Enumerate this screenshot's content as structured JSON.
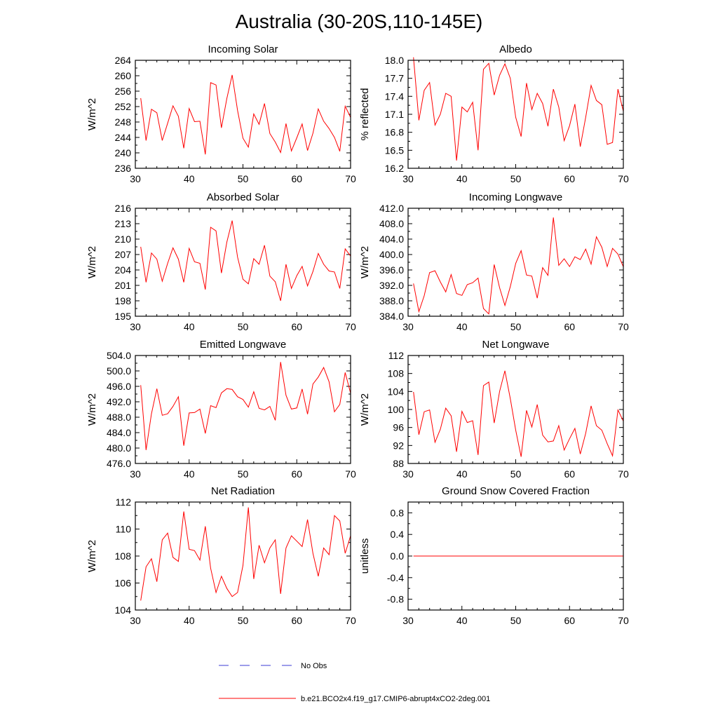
{
  "title": "Australia (30-20S,110-145E)",
  "chart_data": [
    {
      "type": "line",
      "title": "Incoming Solar",
      "ylabel": "W/m^2",
      "xlim": [
        30,
        70
      ],
      "ylim": [
        236,
        264
      ],
      "xticks": [
        "30",
        "40",
        "50",
        "60",
        "70"
      ],
      "yticks": [
        "236",
        "240",
        "244",
        "248",
        "252",
        "256",
        "260",
        "264"
      ],
      "series": [
        {
          "name": "b.e21.BCO2x4.f19_g17.CMIP6-abrupt4xCO2-2deg.001",
          "x": [
            31,
            32,
            33,
            34,
            35,
            36,
            37,
            38,
            39,
            40,
            41,
            42,
            43,
            44,
            45,
            46,
            47,
            48,
            49,
            50,
            51,
            52,
            53,
            54,
            55,
            56,
            57,
            58,
            59,
            60,
            61,
            62,
            63,
            64,
            65,
            66,
            67,
            68,
            69,
            70
          ],
          "values": [
            254.2,
            243.2,
            251.3,
            250.4,
            243.2,
            247.7,
            252.2,
            249.5,
            241.2,
            251.5,
            248.1,
            248.2,
            239.6,
            258.2,
            257.6,
            246.5,
            254.1,
            260.2,
            251.0,
            243.8,
            241.5,
            250.1,
            247.4,
            252.8,
            245.0,
            242.8,
            240.1,
            247.6,
            240.5,
            243.9,
            247.5,
            240.6,
            245.1,
            251.4,
            248.2,
            246.3,
            244.0,
            240.4,
            252.1,
            249.2
          ]
        }
      ]
    },
    {
      "type": "line",
      "title": "Albedo",
      "ylabel": "% reflected",
      "xlim": [
        30,
        70
      ],
      "ylim": [
        16.2,
        18.0
      ],
      "xticks": [
        "30",
        "40",
        "50",
        "60",
        "70"
      ],
      "yticks": [
        "16.2",
        "16.5",
        "16.8",
        "17.1",
        "17.4",
        "17.7",
        "18.0"
      ],
      "series": [
        {
          "name": "b.e21.BCO2x4.f19_g17.CMIP6-abrupt4xCO2-2deg.001",
          "x": [
            31,
            32,
            33,
            34,
            35,
            36,
            37,
            38,
            39,
            40,
            41,
            42,
            43,
            44,
            45,
            46,
            47,
            48,
            49,
            50,
            51,
            52,
            53,
            54,
            55,
            56,
            57,
            58,
            59,
            60,
            61,
            62,
            63,
            64,
            65,
            66,
            67,
            68,
            69,
            70
          ],
          "values": [
            18.05,
            17.0,
            17.5,
            17.63,
            16.92,
            17.1,
            17.45,
            17.4,
            16.33,
            17.22,
            17.14,
            17.3,
            16.5,
            17.85,
            17.95,
            17.42,
            17.75,
            17.94,
            17.7,
            17.05,
            16.73,
            17.62,
            17.18,
            17.45,
            17.28,
            16.9,
            17.52,
            17.22,
            16.66,
            16.91,
            17.27,
            16.56,
            17.05,
            17.58,
            17.33,
            17.26,
            16.6,
            16.63,
            17.52,
            17.15
          ]
        }
      ]
    },
    {
      "type": "line",
      "title": "Absorbed Solar",
      "ylabel": "W/m^2",
      "xlim": [
        30,
        70
      ],
      "ylim": [
        195,
        216
      ],
      "xticks": [
        "30",
        "40",
        "50",
        "60",
        "70"
      ],
      "yticks": [
        "195",
        "198",
        "201",
        "204",
        "207",
        "210",
        "213",
        "216"
      ],
      "series": [
        {
          "name": "b.e21.BCO2x4.f19_g17.CMIP6-abrupt4xCO2-2deg.001",
          "x": [
            31,
            32,
            33,
            34,
            35,
            36,
            37,
            38,
            39,
            40,
            41,
            42,
            43,
            44,
            45,
            46,
            47,
            48,
            49,
            50,
            51,
            52,
            53,
            54,
            55,
            56,
            57,
            58,
            59,
            60,
            61,
            62,
            63,
            64,
            65,
            66,
            67,
            68,
            69,
            70
          ],
          "values": [
            208.5,
            201.6,
            207.3,
            206.1,
            201.8,
            205.3,
            208.3,
            206.1,
            201.6,
            208.2,
            205.6,
            205.3,
            200.2,
            212.3,
            211.6,
            203.4,
            209.4,
            213.6,
            206.5,
            202.2,
            201.3,
            206.2,
            205.1,
            208.8,
            202.8,
            201.7,
            198.0,
            205.1,
            200.4,
            202.9,
            204.7,
            200.9,
            203.7,
            207.2,
            205.1,
            203.8,
            203.6,
            200.4,
            208.1,
            206.7
          ]
        }
      ]
    },
    {
      "type": "line",
      "title": "Incoming Longwave",
      "ylabel": "W/m^2",
      "xlim": [
        30,
        70
      ],
      "ylim": [
        384,
        412
      ],
      "xticks": [
        "30",
        "40",
        "50",
        "60",
        "70"
      ],
      "yticks": [
        "384.0",
        "388.0",
        "392.0",
        "396.0",
        "400.0",
        "404.0",
        "408.0",
        "412.0"
      ],
      "series": [
        {
          "name": "b.e21.BCO2x4.f19_g17.CMIP6-abrupt4xCO2-2deg.001",
          "x": [
            31,
            32,
            33,
            34,
            35,
            36,
            37,
            38,
            39,
            40,
            41,
            42,
            43,
            44,
            45,
            46,
            47,
            48,
            49,
            50,
            51,
            52,
            53,
            54,
            55,
            56,
            57,
            58,
            59,
            60,
            61,
            62,
            63,
            64,
            65,
            66,
            67,
            68,
            69,
            70
          ],
          "values": [
            392.5,
            385.2,
            389.3,
            395.3,
            395.8,
            392.9,
            390.3,
            394.8,
            389.9,
            389.4,
            392.2,
            392.7,
            393.9,
            386.0,
            384.6,
            397.4,
            391.4,
            386.8,
            391.7,
            397.7,
            401.0,
            394.7,
            394.4,
            388.7,
            396.6,
            394.6,
            409.6,
            397.2,
            398.9,
            396.9,
            399.4,
            398.7,
            401.4,
            397.5,
            404.6,
            401.9,
            396.9,
            401.6,
            400.1,
            396.8
          ]
        }
      ]
    },
    {
      "type": "line",
      "title": "Emitted Longwave",
      "ylabel": "W/m^2",
      "xlim": [
        30,
        70
      ],
      "ylim": [
        476,
        504
      ],
      "xticks": [
        "30",
        "40",
        "50",
        "60",
        "70"
      ],
      "yticks": [
        "476.0",
        "480.0",
        "484.0",
        "488.0",
        "492.0",
        "496.0",
        "500.0",
        "504.0"
      ],
      "series": [
        {
          "name": "b.e21.BCO2x4.f19_g17.CMIP6-abrupt4xCO2-2deg.001",
          "x": [
            31,
            32,
            33,
            34,
            35,
            36,
            37,
            38,
            39,
            40,
            41,
            42,
            43,
            44,
            45,
            46,
            47,
            48,
            49,
            50,
            51,
            52,
            53,
            54,
            55,
            56,
            57,
            58,
            59,
            60,
            61,
            62,
            63,
            64,
            65,
            66,
            67,
            68,
            69,
            70
          ],
          "values": [
            496.3,
            479.5,
            488.9,
            495.4,
            488.5,
            488.9,
            490.8,
            493.3,
            480.6,
            489.1,
            489.2,
            490.1,
            483.8,
            491.0,
            490.5,
            494.3,
            495.4,
            495.2,
            493.3,
            492.6,
            490.6,
            494.6,
            490.3,
            489.9,
            490.8,
            487.2,
            502.3,
            493.7,
            490.1,
            490.4,
            495.3,
            488.8,
            496.6,
            498.4,
            500.9,
            497.2,
            489.4,
            491.3,
            499.6,
            494.2
          ]
        }
      ]
    },
    {
      "type": "line",
      "title": "Net Longwave",
      "ylabel": "W/m^2",
      "xlim": [
        30,
        70
      ],
      "ylim": [
        88,
        112
      ],
      "xticks": [
        "30",
        "40",
        "50",
        "60",
        "70"
      ],
      "yticks": [
        "88",
        "92",
        "96",
        "100",
        "104",
        "108",
        "112"
      ],
      "series": [
        {
          "name": "b.e21.BCO2x4.f19_g17.CMIP6-abrupt4xCO2-2deg.001",
          "x": [
            31,
            32,
            33,
            34,
            35,
            36,
            37,
            38,
            39,
            40,
            41,
            42,
            43,
            44,
            45,
            46,
            47,
            48,
            49,
            50,
            51,
            52,
            53,
            54,
            55,
            56,
            57,
            58,
            59,
            60,
            61,
            62,
            63,
            64,
            65,
            66,
            67,
            68,
            69,
            70
          ],
          "values": [
            103.9,
            94.4,
            99.5,
            99.9,
            92.7,
            95.6,
            100.3,
            98.6,
            90.6,
            99.6,
            97.1,
            97.5,
            89.9,
            105.3,
            106.1,
            97.0,
            104.0,
            108.6,
            102.4,
            95.4,
            89.5,
            99.8,
            96.1,
            101.1,
            94.3,
            92.8,
            93.0,
            96.4,
            91.0,
            93.5,
            95.8,
            90.1,
            94.7,
            100.8,
            96.4,
            95.4,
            92.4,
            89.7,
            99.9,
            97.4
          ]
        }
      ]
    },
    {
      "type": "line",
      "title": "Net Radiation",
      "ylabel": "W/m^2",
      "xlim": [
        30,
        70
      ],
      "ylim": [
        104,
        112
      ],
      "xticks": [
        "30",
        "40",
        "50",
        "60",
        "70"
      ],
      "yticks": [
        "104",
        "106",
        "108",
        "110",
        "112"
      ],
      "series": [
        {
          "name": "b.e21.BCO2x4.f19_g17.CMIP6-abrupt4xCO2-2deg.001",
          "x": [
            31,
            32,
            33,
            34,
            35,
            36,
            37,
            38,
            39,
            40,
            41,
            42,
            43,
            44,
            45,
            46,
            47,
            48,
            49,
            50,
            51,
            52,
            53,
            54,
            55,
            56,
            57,
            58,
            59,
            60,
            61,
            62,
            63,
            64,
            65,
            66,
            67,
            68,
            69,
            70
          ],
          "values": [
            104.7,
            107.2,
            107.8,
            106.1,
            109.2,
            109.7,
            107.9,
            107.6,
            111.3,
            108.5,
            108.4,
            107.7,
            110.2,
            107.1,
            105.3,
            106.5,
            105.6,
            105.0,
            105.3,
            107.3,
            111.6,
            106.3,
            108.8,
            107.5,
            108.6,
            109.2,
            105.2,
            108.6,
            109.5,
            109.1,
            108.7,
            110.7,
            108.2,
            106.5,
            108.6,
            108.1,
            111.0,
            110.6,
            108.2,
            109.5
          ]
        }
      ]
    },
    {
      "type": "line",
      "title": "Ground Snow Covered Fraction",
      "ylabel": "unitless",
      "xlim": [
        30,
        70
      ],
      "ylim": [
        -1.0,
        1.0
      ],
      "xticks": [
        "30",
        "40",
        "50",
        "60",
        "70"
      ],
      "yticks": [
        "-0.8",
        "-0.4",
        "0.0",
        "0.4",
        "0.8"
      ],
      "ytick_values": [
        -0.8,
        -0.4,
        0.0,
        0.4,
        0.8
      ],
      "series": [
        {
          "name": "b.e21.BCO2x4.f19_g17.CMIP6-abrupt4xCO2-2deg.001",
          "x": [
            31,
            70
          ],
          "values": [
            0.0,
            0.0
          ]
        }
      ]
    }
  ],
  "legend": {
    "obs_label": "No Obs",
    "model_label": "b.e21.BCO2x4.f19_g17.CMIP6-abrupt4xCO2-2deg.001",
    "obs_color": "#3b3bd6",
    "model_color": "#ff0000"
  }
}
